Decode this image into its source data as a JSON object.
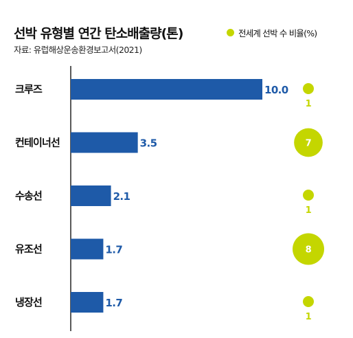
{
  "title": "선박 유형별 연간 탄소배출량(톤)",
  "source": "자료: 유럽해상운송환경보고서(2021)",
  "legend": {
    "label": "전세계 선박 수 비율(%)",
    "color": "#c4d600"
  },
  "colors": {
    "bar": "#1e5aa8",
    "value_text": "#1e5aa8",
    "bubble": "#c4d600",
    "axis": "#222222"
  },
  "chart_data": {
    "type": "bar",
    "orientation": "horizontal",
    "title": "선박 유형별 연간 탄소배출량(톤)",
    "categories": [
      "크루즈",
      "컨테이너선",
      "수송선",
      "유조선",
      "냉장선"
    ],
    "series": [
      {
        "name": "선박 유형별 연간 탄소배출량(톤)",
        "values": [
          10.0,
          3.5,
          2.1,
          1.7,
          1.7
        ],
        "labels": [
          "10.0",
          "3.5",
          "2.1",
          "1.7",
          "1.7"
        ]
      },
      {
        "name": "전세계 선박 수 비율(%)",
        "values": [
          1,
          7,
          1,
          8,
          1
        ],
        "labels": [
          "1",
          "7",
          "1",
          "8",
          "1"
        ]
      }
    ],
    "xlim": [
      0,
      10.0
    ],
    "grid": false,
    "legend_position": "top-right"
  }
}
